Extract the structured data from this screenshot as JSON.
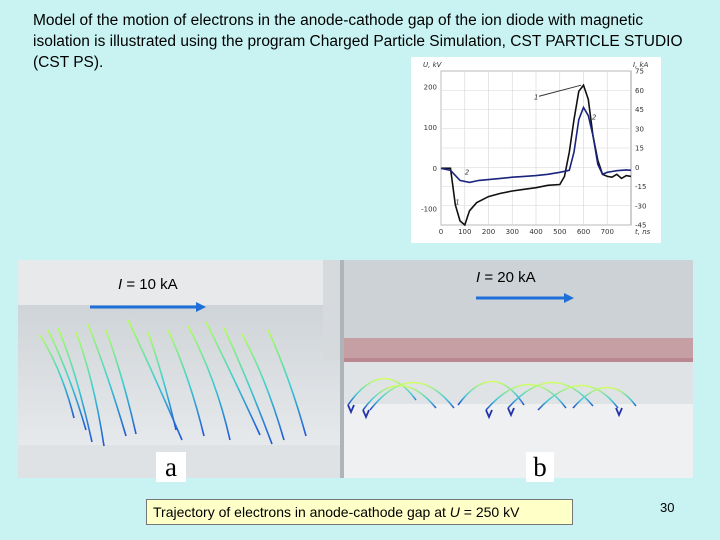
{
  "slide": {
    "intro_text": "Model of the motion of electrons in the anode-cathode gap of the ion diode with magnetic isolation is illustrated using the program Charged Particle Simulation, CST PARTICLE STUDIO (CST PS).",
    "page_number": "30",
    "caption": {
      "prefix": "Trajectory of electrons in anode-cathode gap at ",
      "var": "U",
      "suffix": " = 250 kV"
    },
    "panel_a": {
      "label": "a",
      "current_var": "I",
      "current_text": " = 10 kA"
    },
    "panel_b": {
      "label": "b",
      "current_var": "I",
      "current_text": " = 20 kA"
    }
  },
  "chart_data": {
    "type": "line",
    "xlabel": "t, ns",
    "ylabel_left": "U, kV",
    "ylabel_right": "I, kA",
    "x_ticks": [
      "0",
      "100",
      "200",
      "300",
      "400",
      "500",
      "600",
      "700"
    ],
    "y_left_ticks": [
      "200",
      "100",
      "0",
      "-100"
    ],
    "y_right_ticks": [
      "75",
      "60",
      "45",
      "30",
      "15",
      "0",
      "-15",
      "-30",
      "-45"
    ],
    "xlim": [
      0,
      800
    ],
    "ylim_left": [
      -140,
      240
    ],
    "grid": true,
    "series": [
      {
        "name": "1",
        "color": "#111111",
        "x": [
          0,
          40,
          60,
          80,
          100,
          120,
          150,
          200,
          250,
          300,
          350,
          400,
          450,
          500,
          520,
          540,
          560,
          580,
          600,
          620,
          640,
          660,
          680,
          700,
          720,
          740,
          760,
          780,
          800
        ],
        "y": [
          0,
          0,
          -90,
          -130,
          -140,
          -105,
          -85,
          -70,
          -62,
          -56,
          -52,
          -48,
          -42,
          -40,
          -20,
          40,
          120,
          190,
          205,
          170,
          80,
          20,
          -15,
          -20,
          -22,
          -15,
          -25,
          -18,
          -20
        ]
      },
      {
        "name": "2",
        "color": "#1a237e",
        "x": [
          0,
          40,
          80,
          120,
          160,
          200,
          250,
          300,
          350,
          400,
          450,
          500,
          540,
          560,
          580,
          600,
          620,
          640,
          660,
          680,
          700,
          720,
          740,
          760,
          780,
          800
        ],
        "y": [
          0,
          -5,
          -30,
          -35,
          -30,
          -28,
          -25,
          -22,
          -20,
          -18,
          -15,
          -10,
          -5,
          40,
          120,
          150,
          130,
          80,
          10,
          -15,
          -10,
          -8,
          -6,
          -5,
          -4,
          -5
        ]
      }
    ],
    "annotations": [
      "1",
      "2"
    ]
  }
}
